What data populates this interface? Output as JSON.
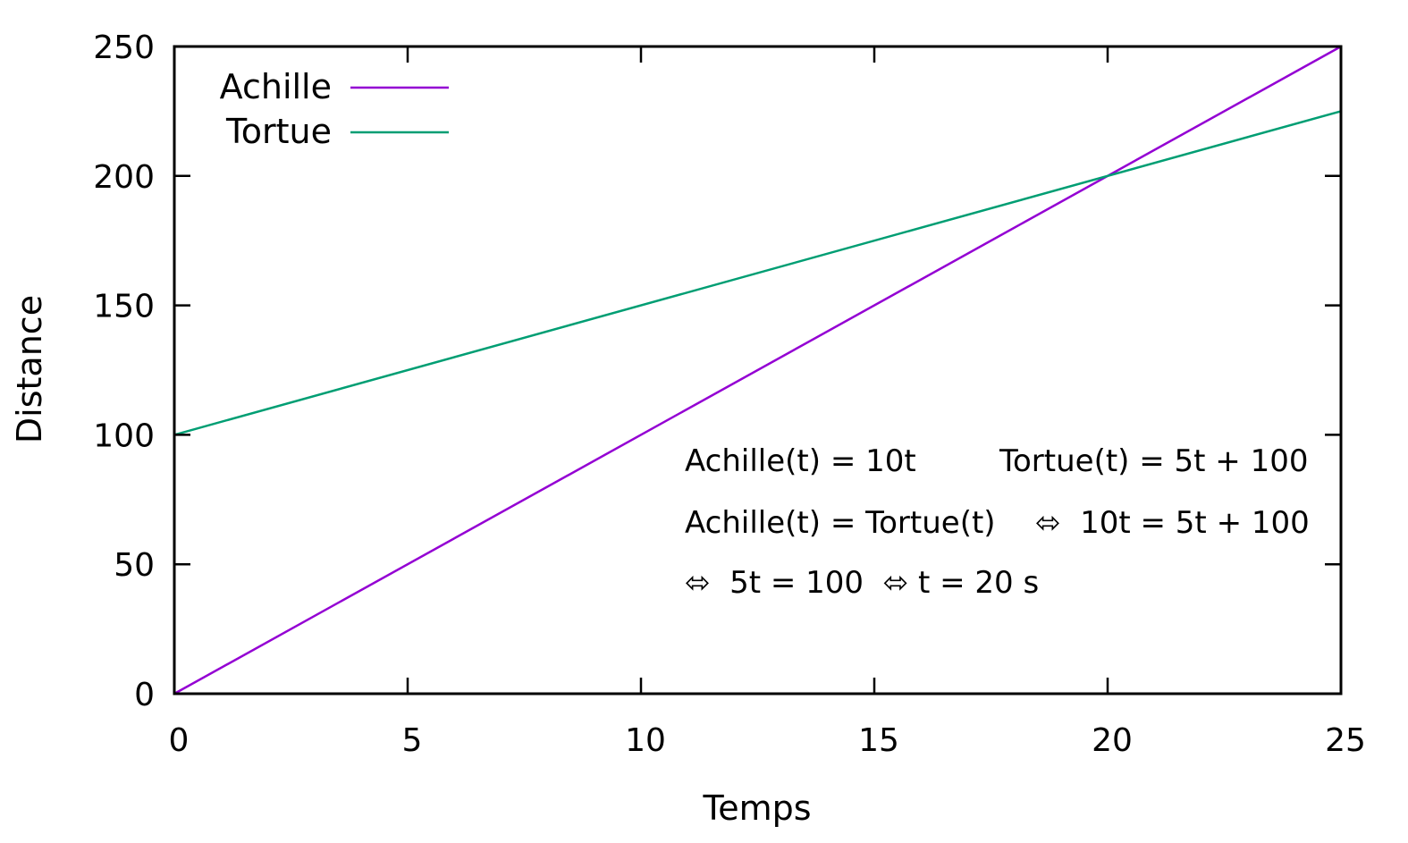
{
  "chart_data": {
    "type": "line",
    "xlabel": "Temps",
    "ylabel": "Distance",
    "xlim": [
      0,
      25
    ],
    "ylim": [
      0,
      250
    ],
    "xticks": [
      0,
      5,
      10,
      15,
      20,
      25
    ],
    "yticks": [
      0,
      50,
      100,
      150,
      200,
      250
    ],
    "grid": false,
    "legend_position": "top-left",
    "series": [
      {
        "name": "Achille",
        "color": "#9400d3",
        "x": [
          0,
          25
        ],
        "y": [
          0,
          250
        ]
      },
      {
        "name": "Tortue",
        "color": "#009e73",
        "x": [
          0,
          25
        ],
        "y": [
          100,
          225
        ]
      }
    ],
    "annotations": [
      "Achille(t) = 10t",
      "Tortue(t) = 5t + 100",
      "Achille(t) = Tortue(t)",
      "⬄  10t = 5t + 100",
      "⬄  5t = 100  ⬄ t = 20 s"
    ]
  }
}
